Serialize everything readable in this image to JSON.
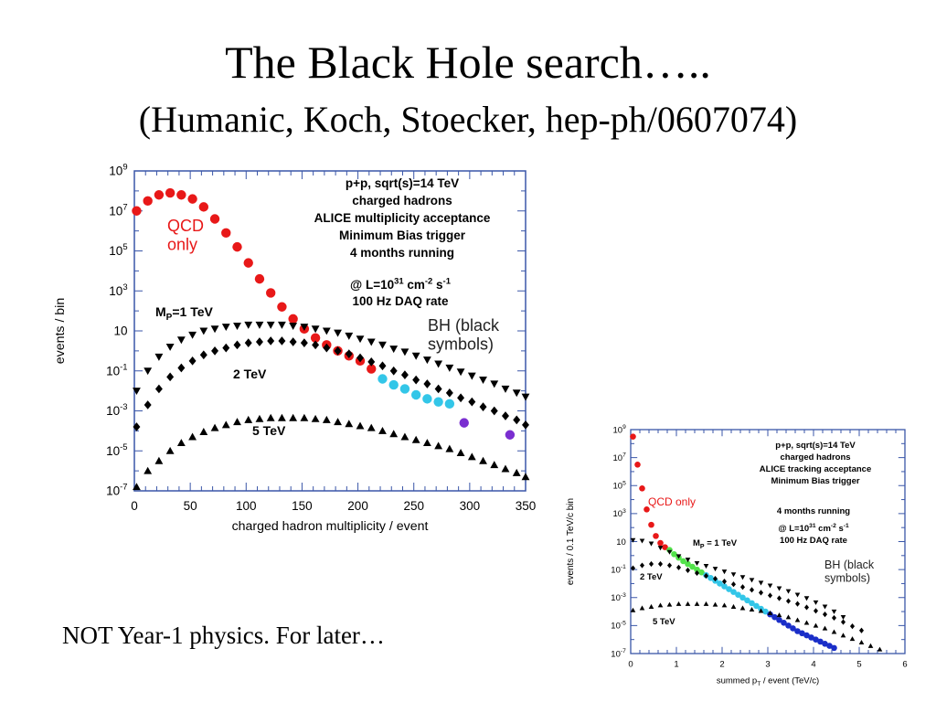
{
  "slide": {
    "title": "The Black Hole search…..",
    "subtitle": "(Humanic, Koch, Stoecker, hep-ph/0607074)",
    "footnote": "NOT Year-1 physics. For later…"
  },
  "colors": {
    "frame": "#3a56a8",
    "qcd_red": "#e81818",
    "cyan": "#33c6e8",
    "purple": "#7a2ed0",
    "green": "#52e24a",
    "blue": "#1a2ec8",
    "black": "#000000"
  },
  "chart_data": [
    {
      "type": "scatter",
      "xlabel": "charged hadron multiplicity / event",
      "ylabel": "events / bin",
      "xlim": [
        0,
        350
      ],
      "ylim_log10": [
        -7,
        9
      ],
      "y_scale": "log",
      "x_ticks": [
        "0",
        "50",
        "100",
        "150",
        "200",
        "250",
        "300",
        "350"
      ],
      "y_ticks": [
        "10^9",
        "10^7",
        "10^5",
        "10^3",
        "10",
        "10^-1",
        "10^-3",
        "10^-5",
        "10^-7"
      ],
      "info_lines": [
        "p+p, sqrt(s)=14 TeV",
        "charged hadrons",
        "ALICE multiplicity acceptance",
        "Minimum Bias trigger",
        "4 months running"
      ],
      "lumi_line": {
        "main": "@ L=10",
        "exp1": "31",
        "mid": " cm",
        "exp2": "-2",
        "mid2": " s",
        "exp3": "-1"
      },
      "daq_line": "100 Hz DAQ rate",
      "labels": {
        "qcd": "QCD\nonly",
        "bh": "BH (black\nsymbols)",
        "mp_prefix": "M",
        "mp_sub": "P",
        "mp_suffix": "=1 TeV",
        "tev2": "2 TeV",
        "tev5": "5 TeV"
      },
      "series": [
        {
          "name": "QCD",
          "marker": "circle",
          "color": "qcd_red",
          "x": [
            2,
            12,
            22,
            32,
            42,
            52,
            62,
            72,
            82,
            92,
            102,
            112,
            122,
            132,
            142,
            152,
            162,
            172,
            182,
            192,
            202,
            212
          ],
          "y_log10": [
            7.0,
            7.5,
            7.8,
            7.9,
            7.8,
            7.6,
            7.2,
            6.6,
            5.9,
            5.2,
            4.4,
            3.6,
            2.9,
            2.2,
            1.6,
            1.1,
            0.65,
            0.3,
            0.0,
            -0.25,
            -0.5,
            -0.9
          ]
        },
        {
          "marker": "circle",
          "color": "cyan",
          "x": [
            222,
            232,
            242,
            252,
            262,
            272,
            282
          ],
          "y_log10": [
            -1.4,
            -1.7,
            -1.9,
            -2.2,
            -2.4,
            -2.55,
            -2.65
          ]
        },
        {
          "marker": "circle",
          "color": "purple",
          "x": [
            295,
            336
          ],
          "y_log10": [
            -3.6,
            -4.2
          ]
        },
        {
          "marker": "triangle-down",
          "color": "black",
          "x": [
            2,
            12,
            22,
            32,
            42,
            52,
            62,
            72,
            82,
            92,
            102,
            112,
            122,
            132,
            142,
            152,
            162,
            172,
            182,
            192,
            202,
            212,
            222,
            232,
            242,
            252,
            262,
            272,
            282,
            292,
            302,
            312,
            322,
            332,
            342,
            350
          ],
          "y_log10": [
            -2.0,
            -1.0,
            -0.3,
            0.2,
            0.55,
            0.8,
            1.0,
            1.1,
            1.2,
            1.25,
            1.3,
            1.3,
            1.3,
            1.3,
            1.25,
            1.2,
            1.1,
            1.0,
            0.9,
            0.75,
            0.6,
            0.45,
            0.3,
            0.1,
            -0.05,
            -0.25,
            -0.45,
            -0.65,
            -0.85,
            -1.05,
            -1.25,
            -1.45,
            -1.65,
            -1.9,
            -2.1,
            -2.3
          ]
        },
        {
          "marker": "diamond",
          "color": "black",
          "x": [
            2,
            12,
            22,
            32,
            42,
            52,
            62,
            72,
            82,
            92,
            102,
            112,
            122,
            132,
            142,
            152,
            162,
            172,
            182,
            192,
            202,
            212,
            222,
            232,
            242,
            252,
            262,
            272,
            282,
            292,
            302,
            312,
            322,
            332,
            342,
            350
          ],
          "y_log10": [
            -3.8,
            -2.7,
            -1.9,
            -1.3,
            -0.85,
            -0.5,
            -0.2,
            0.0,
            0.15,
            0.3,
            0.4,
            0.45,
            0.5,
            0.5,
            0.45,
            0.4,
            0.3,
            0.15,
            0.0,
            -0.15,
            -0.35,
            -0.55,
            -0.75,
            -1.0,
            -1.2,
            -1.45,
            -1.65,
            -1.9,
            -2.1,
            -2.35,
            -2.55,
            -2.8,
            -3.0,
            -3.25,
            -3.45,
            -3.7
          ]
        },
        {
          "marker": "triangle-up",
          "color": "black",
          "x": [
            2,
            12,
            22,
            32,
            42,
            52,
            62,
            72,
            82,
            92,
            102,
            112,
            122,
            132,
            142,
            152,
            162,
            172,
            182,
            192,
            202,
            212,
            222,
            232,
            242,
            252,
            262,
            272,
            282,
            292,
            302,
            312,
            322,
            332,
            342,
            350
          ],
          "y_log10": [
            -6.8,
            -6.0,
            -5.5,
            -5.0,
            -4.6,
            -4.3,
            -4.05,
            -3.85,
            -3.7,
            -3.55,
            -3.45,
            -3.4,
            -3.35,
            -3.35,
            -3.35,
            -3.35,
            -3.4,
            -3.45,
            -3.55,
            -3.65,
            -3.75,
            -3.85,
            -4.0,
            -4.15,
            -4.3,
            -4.45,
            -4.6,
            -4.75,
            -4.9,
            -5.1,
            -5.3,
            -5.5,
            -5.7,
            -5.9,
            -6.1,
            -6.3
          ]
        }
      ]
    },
    {
      "type": "scatter",
      "xlabel": "summed p",
      "xlabel_sub": "T",
      "xlabel_suffix": " / event (TeV/c)",
      "ylabel": "events / 0.1 TeV/c bin",
      "xlim": [
        0,
        6
      ],
      "ylim_log10": [
        -7,
        9
      ],
      "y_scale": "log",
      "x_ticks": [
        "0",
        "1",
        "2",
        "3",
        "4",
        "5",
        "6"
      ],
      "y_ticks": [
        "10^9",
        "10^7",
        "10^5",
        "10^3",
        "10",
        "10^-1",
        "10^-3",
        "10^-5",
        "10^-7"
      ],
      "info_lines": [
        "p+p, sqrt(s)=14 TeV",
        "charged hadrons",
        "ALICE tracking acceptance",
        "Minimum Bias trigger"
      ],
      "info_lines2": [
        "4 months running"
      ],
      "lumi_line": {
        "main": "@ L=10",
        "exp1": "31",
        "mid": " cm",
        "exp2": "-2",
        "mid2": " s",
        "exp3": "-1"
      },
      "daq_line": "100 Hz DAQ rate",
      "labels": {
        "qcd": "QCD only",
        "bh": "BH (black\nsymbols)",
        "mp_prefix": "M",
        "mp_sub": "P",
        "mp_suffix": " = 1 TeV",
        "tev2": "2 TeV",
        "tev5": "5 TeV"
      },
      "series": [
        {
          "name": "QCD",
          "marker": "circle",
          "color": "qcd_red",
          "x": [
            0.05,
            0.15,
            0.25,
            0.35,
            0.45,
            0.55,
            0.65,
            0.75
          ],
          "y_log10": [
            8.5,
            6.5,
            4.8,
            3.3,
            2.2,
            1.4,
            0.9,
            0.6
          ]
        },
        {
          "marker": "circle",
          "color": "green",
          "x": [
            0.85,
            0.95,
            1.05,
            1.15,
            1.25,
            1.35,
            1.45,
            1.55
          ],
          "y_log10": [
            0.4,
            0.1,
            -0.15,
            -0.4,
            -0.6,
            -0.8,
            -1.0,
            -1.2
          ]
        },
        {
          "marker": "circle",
          "color": "cyan",
          "x": [
            1.65,
            1.75,
            1.85,
            1.95,
            2.05,
            2.15,
            2.25,
            2.35,
            2.45,
            2.55,
            2.65,
            2.75,
            2.85,
            2.95
          ],
          "y_log10": [
            -1.4,
            -1.6,
            -1.8,
            -2.0,
            -2.2,
            -2.4,
            -2.6,
            -2.8,
            -3.0,
            -3.2,
            -3.4,
            -3.6,
            -3.8,
            -4.0
          ]
        },
        {
          "marker": "circle",
          "color": "blue",
          "x": [
            3.05,
            3.15,
            3.25,
            3.35,
            3.45,
            3.55,
            3.65,
            3.75,
            3.85,
            3.95,
            4.05,
            4.15,
            4.25,
            4.35,
            4.45
          ],
          "y_log10": [
            -4.2,
            -4.4,
            -4.6,
            -4.8,
            -5.0,
            -5.2,
            -5.4,
            -5.55,
            -5.7,
            -5.85,
            -6.0,
            -6.15,
            -6.3,
            -6.45,
            -6.6
          ]
        },
        {
          "marker": "triangle-down",
          "color": "black",
          "x": [
            0.05,
            0.25,
            0.45,
            0.65,
            0.85,
            1.05,
            1.25,
            1.45,
            1.65,
            1.85,
            2.05,
            2.25,
            2.45,
            2.65,
            2.85,
            3.05,
            3.25,
            3.45,
            3.65,
            3.85,
            4.05,
            4.25,
            4.45,
            4.65
          ],
          "y_log10": [
            1.1,
            1.05,
            0.85,
            0.55,
            0.25,
            -0.05,
            -0.3,
            -0.55,
            -0.75,
            -0.95,
            -1.15,
            -1.35,
            -1.55,
            -1.75,
            -1.95,
            -2.15,
            -2.35,
            -2.55,
            -2.8,
            -3.05,
            -3.35,
            -3.65,
            -4.0,
            -4.4
          ]
        },
        {
          "marker": "diamond",
          "color": "black",
          "x": [
            0.05,
            0.25,
            0.45,
            0.65,
            0.85,
            1.05,
            1.25,
            1.45,
            1.65,
            1.85,
            2.05,
            2.25,
            2.45,
            2.65,
            2.85,
            3.05,
            3.25,
            3.45,
            3.65,
            3.85,
            4.05,
            4.25,
            4.45,
            4.65,
            4.85,
            5.05
          ],
          "y_log10": [
            -0.9,
            -0.7,
            -0.6,
            -0.6,
            -0.7,
            -0.85,
            -1.05,
            -1.25,
            -1.45,
            -1.65,
            -1.85,
            -2.05,
            -2.25,
            -2.45,
            -2.65,
            -2.85,
            -3.05,
            -3.25,
            -3.45,
            -3.7,
            -3.95,
            -4.2,
            -4.45,
            -4.75,
            -5.05,
            -5.35
          ]
        },
        {
          "marker": "triangle-up",
          "color": "black",
          "x": [
            0.05,
            0.25,
            0.45,
            0.65,
            0.85,
            1.05,
            1.25,
            1.45,
            1.65,
            1.85,
            2.05,
            2.25,
            2.45,
            2.65,
            2.85,
            3.05,
            3.25,
            3.45,
            3.65,
            3.85,
            4.05,
            4.25,
            4.45,
            4.65,
            4.85,
            5.05,
            5.25,
            5.45
          ],
          "y_log10": [
            -3.9,
            -3.75,
            -3.65,
            -3.55,
            -3.5,
            -3.45,
            -3.45,
            -3.45,
            -3.45,
            -3.5,
            -3.55,
            -3.65,
            -3.75,
            -3.85,
            -3.95,
            -4.1,
            -4.25,
            -4.4,
            -4.6,
            -4.8,
            -5.0,
            -5.2,
            -5.45,
            -5.7,
            -5.95,
            -6.2,
            -6.45,
            -6.7
          ]
        }
      ]
    }
  ]
}
